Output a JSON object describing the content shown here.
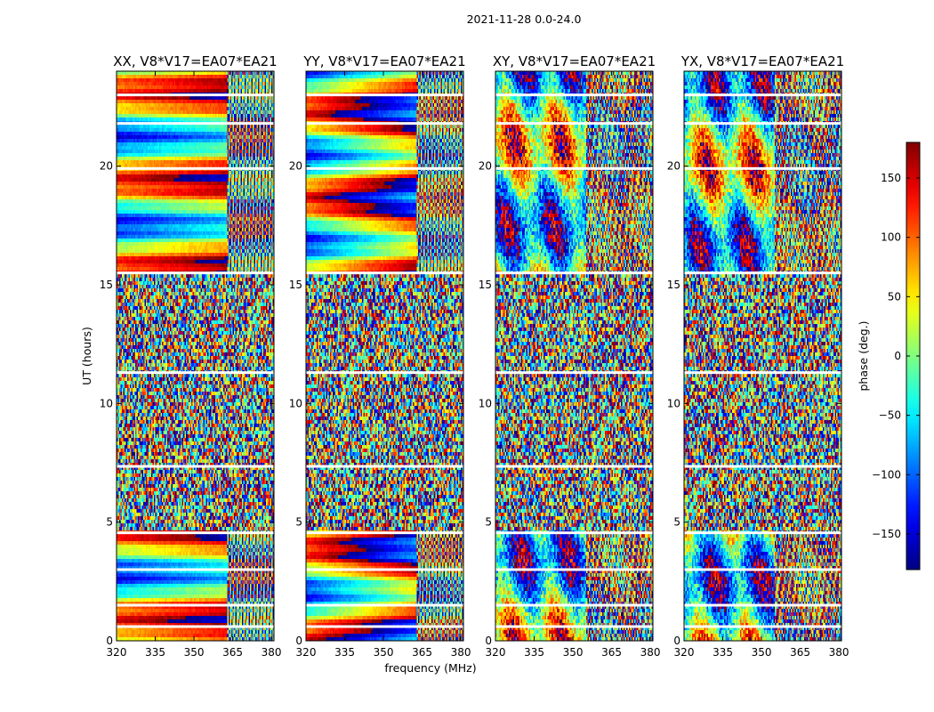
{
  "chart_data": {
    "type": "heatmap",
    "suptitle": "2021-11-28 0.0-24.0",
    "xlabel": "frequency (MHz)",
    "ylabel": "UT (hours)",
    "xlim": [
      320,
      381
    ],
    "ylim": [
      0,
      24
    ],
    "xticks": [
      320,
      335,
      350,
      365,
      380
    ],
    "yticks": [
      0,
      5,
      10,
      15,
      20
    ],
    "panels": [
      {
        "title": "XX, V8*V17=EA07*EA21",
        "pol": "XX"
      },
      {
        "title": "YY, V8*V17=EA07*EA21",
        "pol": "YY"
      },
      {
        "title": "XY, V8*V17=EA07*EA21",
        "pol": "XY"
      },
      {
        "title": "YX, V8*V17=EA07*EA21",
        "pol": "YX"
      }
    ],
    "colorbar": {
      "label": "phase (deg.)",
      "range": [
        -180,
        180
      ],
      "ticks": [
        150,
        100,
        50,
        0,
        -50,
        -100,
        -150
      ],
      "tick_labels": [
        "150",
        "100",
        "50",
        "0",
        "−50",
        "−100",
        "−150"
      ],
      "colormap": "jet"
    },
    "flagged_gaps_hours": [
      0.6,
      1.5,
      3.0,
      4.55,
      7.35,
      11.3,
      15.5,
      19.9,
      21.8,
      23.0
    ],
    "noisy_intervals_hours": [
      [
        4.6,
        15.5
      ]
    ],
    "coherent_intervals_hours": [
      [
        0,
        4.5
      ],
      [
        15.6,
        24
      ]
    ]
  }
}
